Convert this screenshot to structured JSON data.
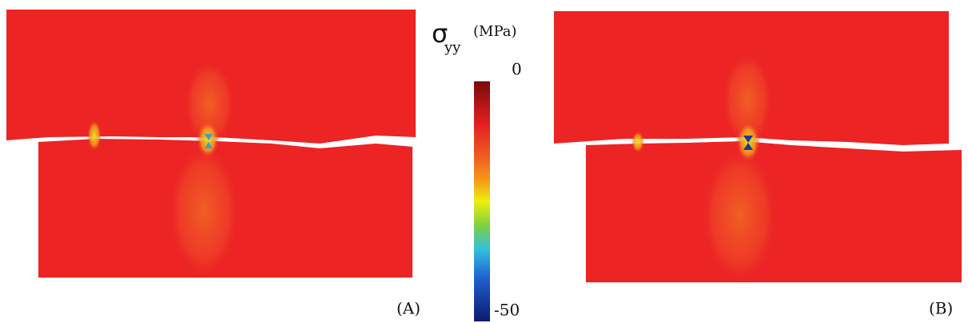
{
  "colorbar": {
    "symbol": "σ",
    "subscript": "yy",
    "unit": "(MPa)",
    "top_label": "0",
    "bottom_label": "-50"
  },
  "panels": [
    {
      "label": "(A)"
    },
    {
      "label": "(B)"
    }
  ]
}
